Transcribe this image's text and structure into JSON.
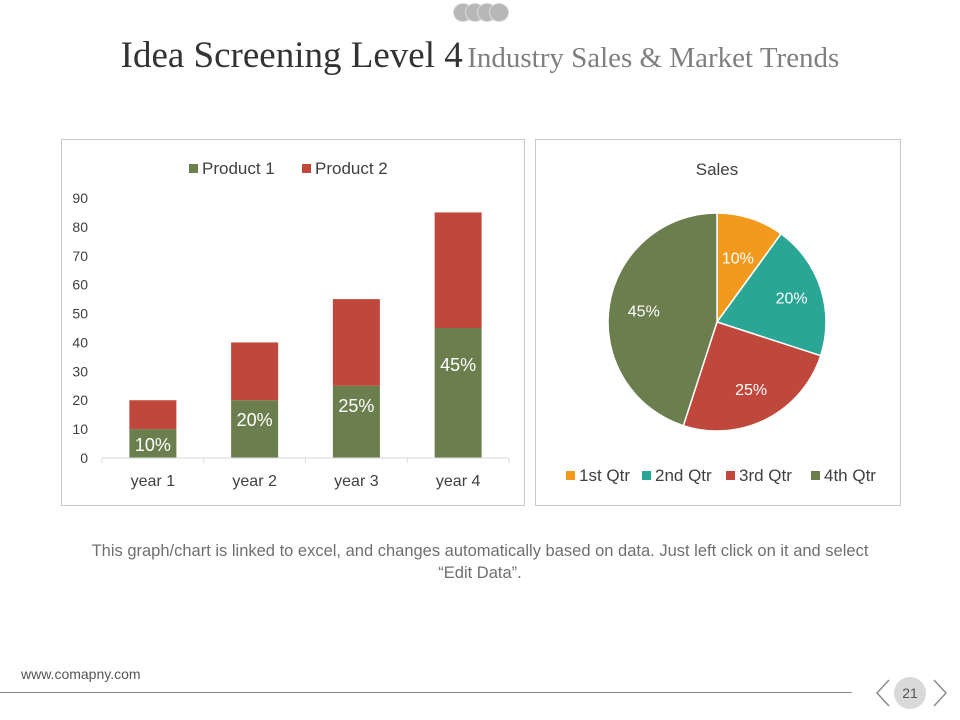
{
  "title": {
    "main": "Idea Screening Level 4",
    "sub": "Industry Sales & Market Trends"
  },
  "colors": {
    "product1": "#6b7f4e",
    "product2": "#c0473b",
    "q1": "#f29a1e",
    "q2": "#2aa697",
    "q3": "#c0473b",
    "q4": "#6b7f4e",
    "logo": "#b7b7b7"
  },
  "chart_data": [
    {
      "type": "bar",
      "stacked": true,
      "title": "",
      "categories": [
        "year 1",
        "year 2",
        "year 3",
        "year 4"
      ],
      "series": [
        {
          "name": "Product 1",
          "values": [
            10,
            20,
            25,
            45
          ],
          "labels": [
            "10%",
            "20%",
            "25%",
            "45%"
          ]
        },
        {
          "name": "Product  2",
          "values": [
            10,
            20,
            30,
            40
          ]
        }
      ],
      "ylim": [
        0,
        90
      ],
      "yticks": [
        0,
        10,
        20,
        30,
        40,
        50,
        60,
        70,
        80,
        90
      ],
      "xlabel": "",
      "ylabel": "",
      "legend": "top"
    },
    {
      "type": "pie",
      "title": "Sales",
      "labels": [
        "1st Qtr",
        "2nd Qtr",
        "3rd Qtr",
        "4th Qtr"
      ],
      "values": [
        10,
        20,
        25,
        45
      ],
      "data_labels": [
        "10%",
        "20%",
        "25%",
        "45%"
      ],
      "legend": "bottom"
    }
  ],
  "caption": "This graph/chart is linked to excel, and changes automatically based on data. Just left click on it and select “Edit Data”.",
  "footer": {
    "url": "www.comapny.com",
    "page": "21"
  },
  "icons": {
    "prev": "chevron-left-icon",
    "next": "chevron-right-icon"
  }
}
